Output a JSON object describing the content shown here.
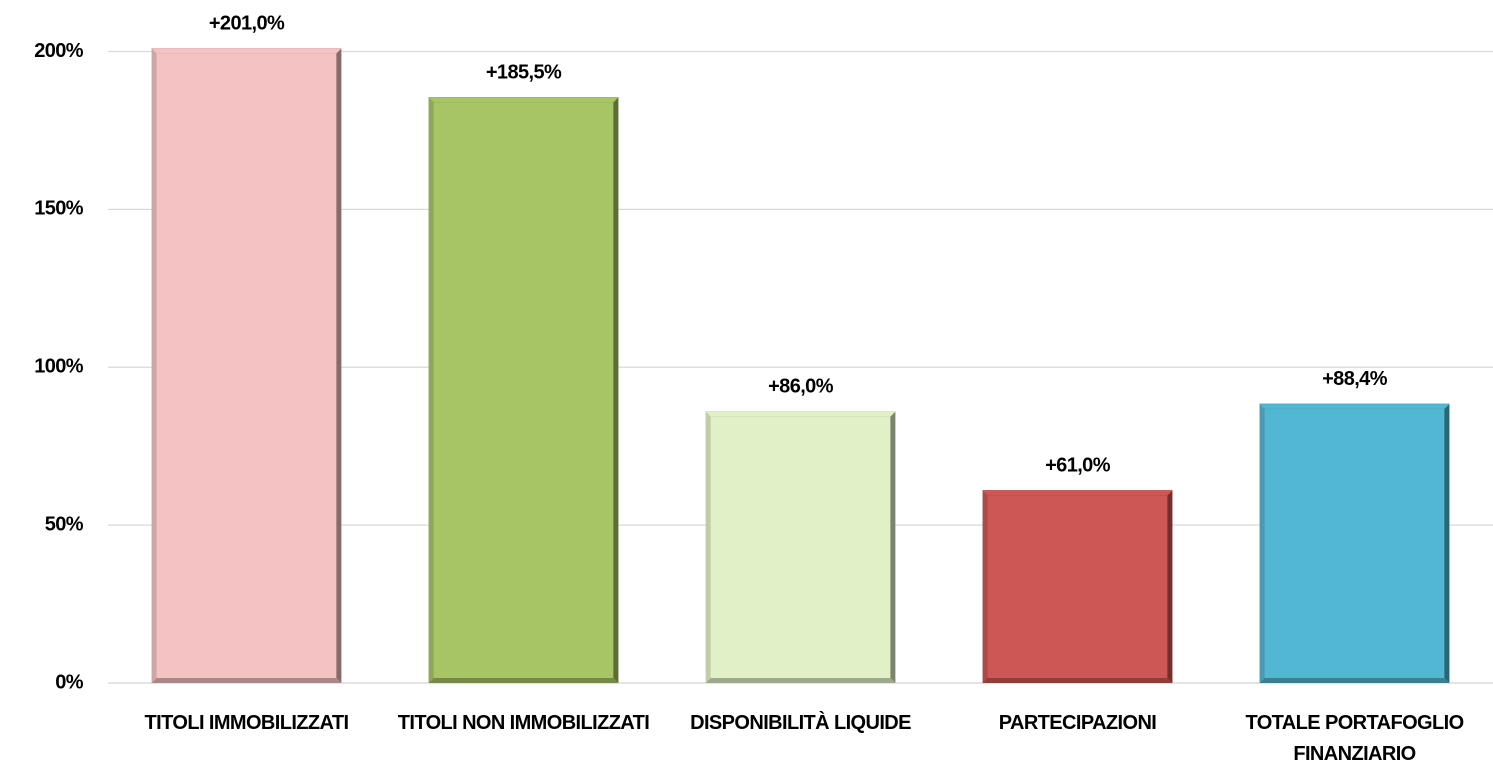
{
  "chart_data": {
    "type": "bar",
    "categories": [
      "TITOLI IMMOBILIZZATI",
      "TITOLI NON IMMOBILIZZATI",
      "DISPONIBILITÀ LIQUIDE",
      "PARTECIPAZIONI",
      "TOTALE PORTAFOGLIO FINANZIARIO"
    ],
    "values": [
      201.0,
      185.5,
      86.0,
      61.0,
      88.4
    ],
    "value_labels": [
      "+201,0%",
      "+185,5%",
      "+86,0%",
      "+61,0%",
      "+88,4%"
    ],
    "colors": [
      "#f4c2c2",
      "#a8c565",
      "#e2f0c8",
      "#cd5755",
      "#52b7d2"
    ],
    "ylim": [
      0,
      216
    ],
    "yticks": [
      {
        "value": 0,
        "label": "0%"
      },
      {
        "value": 50,
        "label": "50%"
      },
      {
        "value": 100,
        "label": "100%"
      },
      {
        "value": 150,
        "label": "150%"
      },
      {
        "value": 200,
        "label": "200%"
      }
    ],
    "grid": true
  }
}
